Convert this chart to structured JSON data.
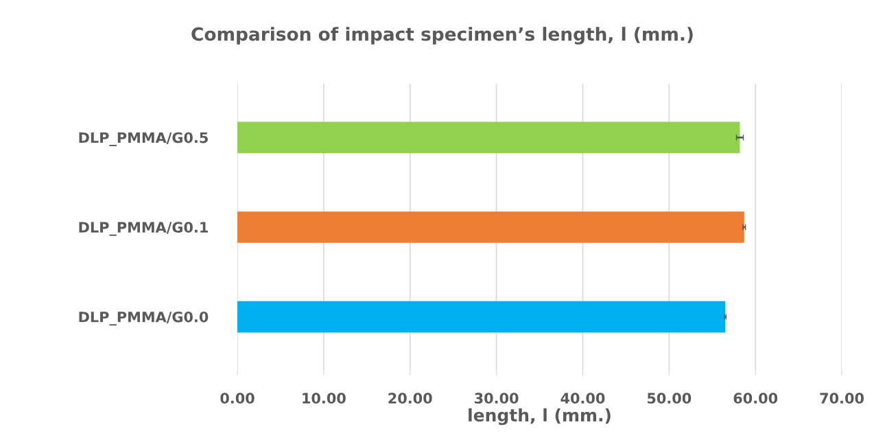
{
  "chart_data": {
    "type": "bar",
    "orientation": "horizontal",
    "title": "Comparison of impact specimen’s length, l (mm.)",
    "xlabel": "length, l (mm.)",
    "categories": [
      "DLP_PMMA/G0.5",
      "DLP_PMMA/G0.1",
      "DLP_PMMA/G0.0"
    ],
    "values": [
      58.2,
      58.7,
      56.5
    ],
    "colors": [
      "#92d050",
      "#ed7d31",
      "#00b0f0"
    ],
    "errors": [
      0.4,
      0.15,
      0.1
    ],
    "xlim": [
      0,
      70
    ],
    "xticks": [
      {
        "value": 0,
        "label": "0.00"
      },
      {
        "value": 10,
        "label": "10.00"
      },
      {
        "value": 20,
        "label": "20.00"
      },
      {
        "value": 30,
        "label": "30.00"
      },
      {
        "value": 40,
        "label": "40.00"
      },
      {
        "value": 50,
        "label": "50.00"
      },
      {
        "value": 60,
        "label": "60.00"
      },
      {
        "value": 70,
        "label": "70.00"
      }
    ],
    "grid": "x"
  }
}
